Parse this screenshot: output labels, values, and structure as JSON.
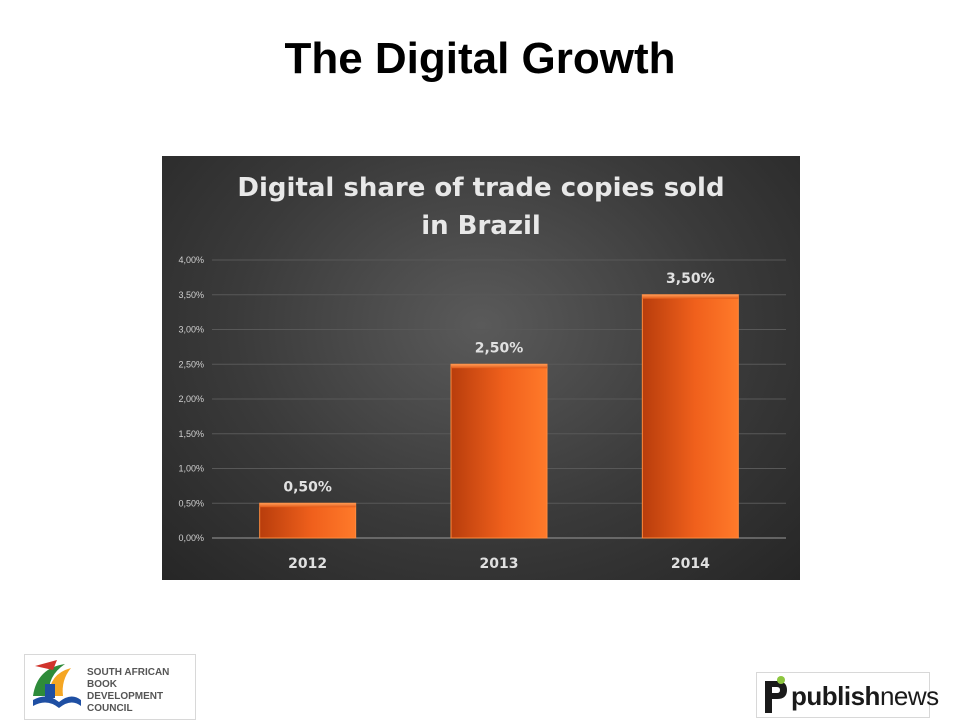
{
  "slide": {
    "title": "The Digital Growth"
  },
  "chart_data": {
    "type": "bar",
    "title": "Digital share of trade copies sold in Brazil",
    "title_lines": [
      "Digital share of trade copies sold",
      "in Brazil"
    ],
    "categories": [
      "2012",
      "2013",
      "2014"
    ],
    "values": [
      0.5,
      2.5,
      3.5
    ],
    "data_labels": [
      "0,50%",
      "2,50%",
      "3,50%"
    ],
    "ylim": [
      0,
      4
    ],
    "yticks": [
      0,
      0.5,
      1,
      1.5,
      2,
      2.5,
      3,
      3.5,
      4
    ],
    "ytick_labels": [
      "0,00%",
      "0,50%",
      "1,00%",
      "1,50%",
      "2,00%",
      "2,50%",
      "3,00%",
      "3,50%",
      "4,00%"
    ],
    "xlabel": "",
    "ylabel": "",
    "grid": true,
    "legend": "none",
    "bar_color": "#f26522",
    "background_color": "#3a3a3a"
  },
  "logos": {
    "left": {
      "lines": [
        "SOUTH AFRICAN",
        "BOOK DEVELOPMENT",
        "COUNCIL"
      ]
    },
    "right": {
      "text_bold": "publish",
      "text_regular": "news"
    }
  }
}
